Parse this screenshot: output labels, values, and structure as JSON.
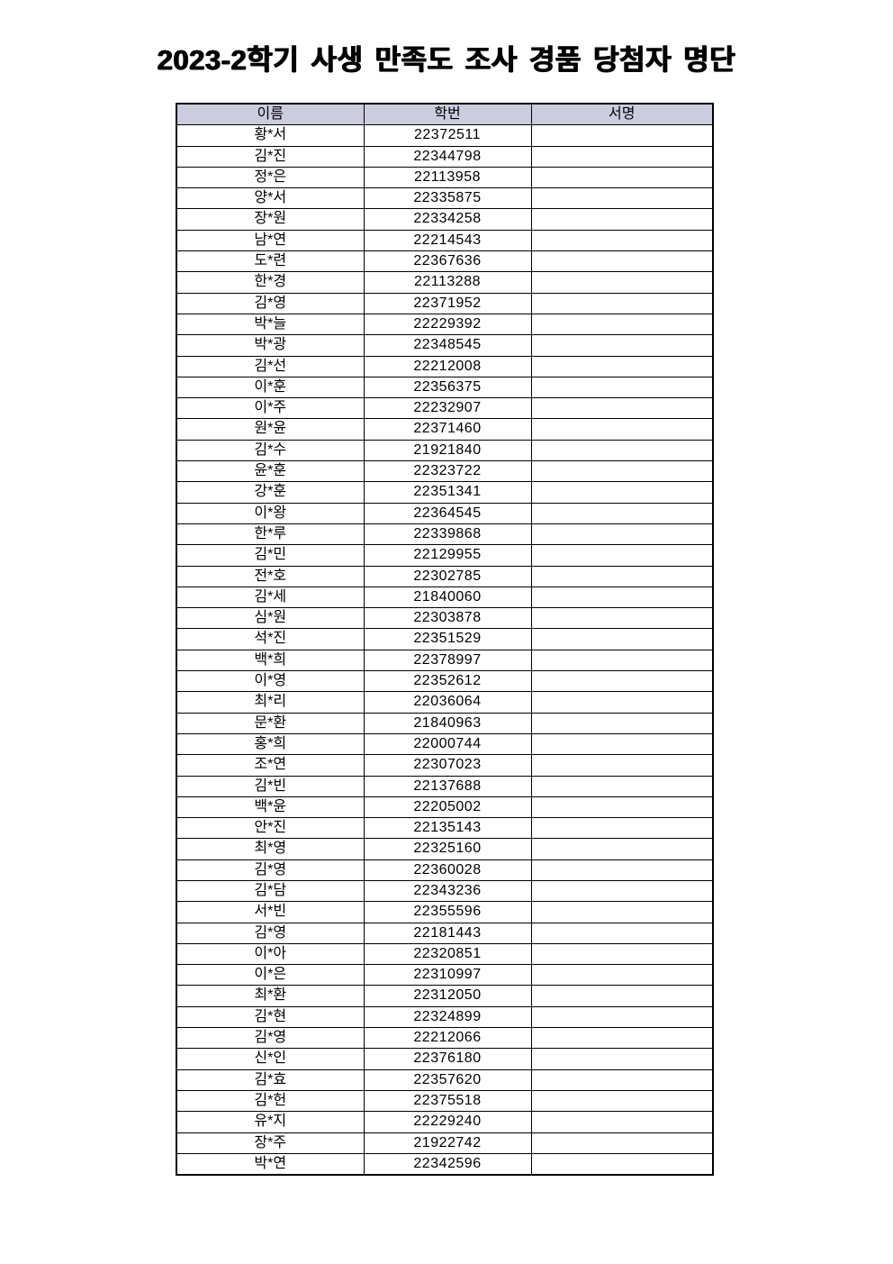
{
  "title": "2023-2학기 사생 만족도 조사 경품 당첨자 명단",
  "colors": {
    "page_bg": "#ffffff",
    "header_bg": "#ccccdf",
    "border": "#000000",
    "text": "#000000"
  },
  "table": {
    "columns": [
      {
        "key": "name",
        "label": "이름"
      },
      {
        "key": "id",
        "label": "학번"
      },
      {
        "key": "sign",
        "label": "서명"
      }
    ],
    "rows": [
      {
        "name": "황*서",
        "id": "22372511",
        "sign": ""
      },
      {
        "name": "김*진",
        "id": "22344798",
        "sign": ""
      },
      {
        "name": "정*은",
        "id": "22113958",
        "sign": ""
      },
      {
        "name": "양*서",
        "id": "22335875",
        "sign": ""
      },
      {
        "name": "장*원",
        "id": "22334258",
        "sign": ""
      },
      {
        "name": "남*연",
        "id": "22214543",
        "sign": ""
      },
      {
        "name": "도*련",
        "id": "22367636",
        "sign": ""
      },
      {
        "name": "한*경",
        "id": "22113288",
        "sign": ""
      },
      {
        "name": "김*영",
        "id": "22371952",
        "sign": ""
      },
      {
        "name": "박*늘",
        "id": "22229392",
        "sign": ""
      },
      {
        "name": "박*광",
        "id": "22348545",
        "sign": ""
      },
      {
        "name": "김*선",
        "id": "22212008",
        "sign": ""
      },
      {
        "name": "이*훈",
        "id": "22356375",
        "sign": ""
      },
      {
        "name": "이*주",
        "id": "22232907",
        "sign": ""
      },
      {
        "name": "원*윤",
        "id": "22371460",
        "sign": ""
      },
      {
        "name": "김*수",
        "id": "21921840",
        "sign": ""
      },
      {
        "name": "윤*훈",
        "id": "22323722",
        "sign": ""
      },
      {
        "name": "강*훈",
        "id": "22351341",
        "sign": ""
      },
      {
        "name": "이*왕",
        "id": "22364545",
        "sign": ""
      },
      {
        "name": "한*루",
        "id": "22339868",
        "sign": ""
      },
      {
        "name": "김*민",
        "id": "22129955",
        "sign": ""
      },
      {
        "name": "전*호",
        "id": "22302785",
        "sign": ""
      },
      {
        "name": "김*세",
        "id": "21840060",
        "sign": ""
      },
      {
        "name": "심*원",
        "id": "22303878",
        "sign": ""
      },
      {
        "name": "석*진",
        "id": "22351529",
        "sign": ""
      },
      {
        "name": "백*희",
        "id": "22378997",
        "sign": ""
      },
      {
        "name": "이*영",
        "id": "22352612",
        "sign": ""
      },
      {
        "name": "최*리",
        "id": "22036064",
        "sign": ""
      },
      {
        "name": "문*환",
        "id": "21840963",
        "sign": ""
      },
      {
        "name": "홍*희",
        "id": "22000744",
        "sign": ""
      },
      {
        "name": "조*연",
        "id": "22307023",
        "sign": ""
      },
      {
        "name": "김*빈",
        "id": "22137688",
        "sign": ""
      },
      {
        "name": "백*윤",
        "id": "22205002",
        "sign": ""
      },
      {
        "name": "안*진",
        "id": "22135143",
        "sign": ""
      },
      {
        "name": "최*영",
        "id": "22325160",
        "sign": ""
      },
      {
        "name": "김*영",
        "id": "22360028",
        "sign": ""
      },
      {
        "name": "김*담",
        "id": "22343236",
        "sign": ""
      },
      {
        "name": "서*빈",
        "id": "22355596",
        "sign": ""
      },
      {
        "name": "김*영",
        "id": "22181443",
        "sign": ""
      },
      {
        "name": "이*아",
        "id": "22320851",
        "sign": ""
      },
      {
        "name": "이*은",
        "id": "22310997",
        "sign": ""
      },
      {
        "name": "최*환",
        "id": "22312050",
        "sign": ""
      },
      {
        "name": "김*현",
        "id": "22324899",
        "sign": ""
      },
      {
        "name": "김*영",
        "id": "22212066",
        "sign": ""
      },
      {
        "name": "신*인",
        "id": "22376180",
        "sign": ""
      },
      {
        "name": "김*효",
        "id": "22357620",
        "sign": ""
      },
      {
        "name": "김*헌",
        "id": "22375518",
        "sign": ""
      },
      {
        "name": "유*지",
        "id": "22229240",
        "sign": ""
      },
      {
        "name": "장*주",
        "id": "21922742",
        "sign": ""
      },
      {
        "name": "박*연",
        "id": "22342596",
        "sign": ""
      }
    ]
  }
}
